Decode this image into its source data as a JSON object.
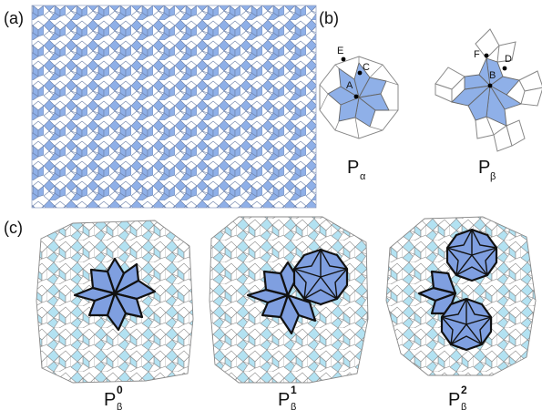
{
  "panels": {
    "a": {
      "label": "(a)"
    },
    "b": {
      "label": "(b)",
      "alpha": {
        "caption_main": "P",
        "caption_sub": "α",
        "points": [
          "E",
          "C",
          "A"
        ]
      },
      "beta": {
        "caption_main": "P",
        "caption_sub": "β",
        "points": [
          "F",
          "D",
          "B"
        ]
      }
    },
    "c": {
      "label": "(c)",
      "patches": [
        {
          "caption_main": "P",
          "caption_sup": "0",
          "caption_sub": "β"
        },
        {
          "caption_main": "P",
          "caption_sup": "1",
          "caption_sub": "β"
        },
        {
          "caption_main": "P",
          "caption_sup": "2",
          "caption_sub": "β"
        }
      ]
    }
  },
  "colors": {
    "tiling_blue": "#8fb0e8",
    "light_cyan": "#b3e2f2",
    "core_blue": "#7f9fe0",
    "line": "#888888",
    "outline": "#111111"
  }
}
